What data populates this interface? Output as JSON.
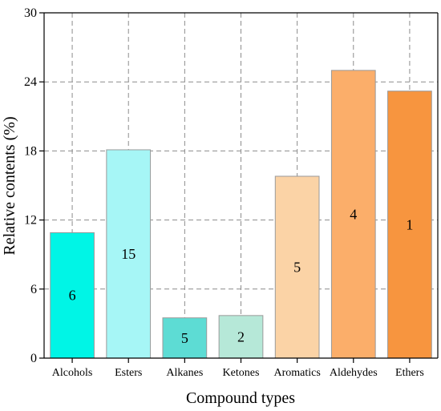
{
  "chart_data": {
    "type": "bar",
    "xlabel": "Compound types",
    "ylabel": "Relative contents (%)",
    "ylim": [
      0,
      30
    ],
    "yticks": [
      0,
      6,
      12,
      18,
      24,
      30
    ],
    "grid": true,
    "categories": [
      "Alcohols",
      "Esters",
      "Alkanes",
      "Ketones",
      "Aromatics",
      "Aldehydes",
      "Ethers"
    ],
    "values": [
      10.9,
      18.1,
      3.5,
      3.7,
      15.8,
      25.0,
      23.2
    ],
    "bar_labels": [
      "6",
      "15",
      "5",
      "2",
      "5",
      "4",
      "1"
    ],
    "colors": [
      "#00f5e6",
      "#a6f6f6",
      "#5ddcd4",
      "#b6e8d8",
      "#fbd3a6",
      "#fbae6a",
      "#f7953f"
    ]
  }
}
